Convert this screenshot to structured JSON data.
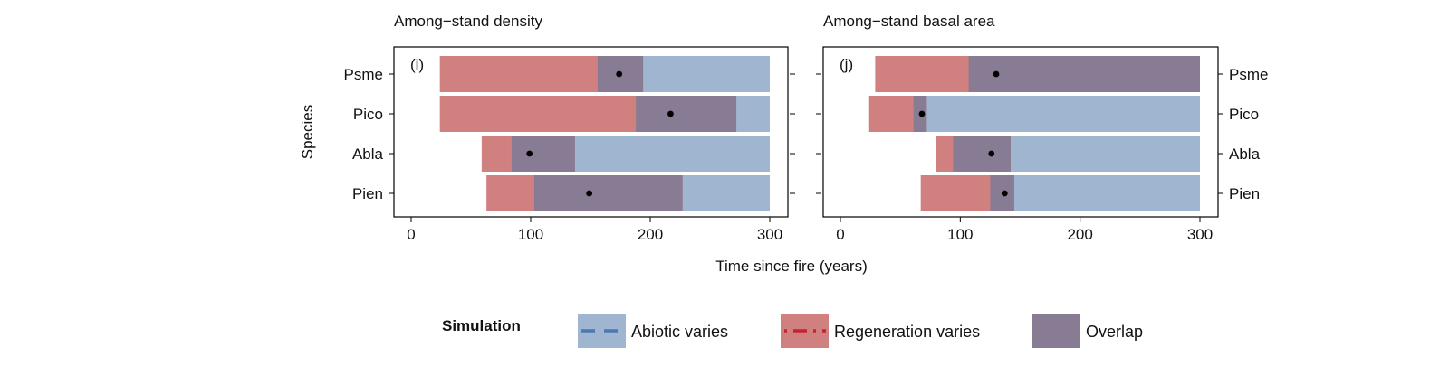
{
  "colors": {
    "abiotic": "#a0b5cf",
    "regeneration": "#d18080",
    "overlap": "#877c93",
    "point": "#000000",
    "abiotic_line": "#4a78b5",
    "regen_line": "#c0262c"
  },
  "x_axis_label": "Time since fire (years)",
  "y_axis_label": "Species",
  "legend": {
    "title": "Simulation",
    "items": [
      {
        "key": "abiotic",
        "label": "Abiotic varies",
        "line_style": "dashed"
      },
      {
        "key": "regeneration",
        "label": "Regeneration varies",
        "line_style": "dash-dot"
      },
      {
        "key": "overlap",
        "label": "Overlap",
        "line_style": "none"
      }
    ]
  },
  "chart_data": [
    {
      "type": "bar",
      "title": "Among−stand density",
      "panel_tag": "(i)",
      "xlim": [
        0,
        300
      ],
      "xticks": [
        0,
        100,
        200,
        300
      ],
      "species": [
        "Psme",
        "Pico",
        "Abla",
        "Pien"
      ],
      "series": [
        {
          "name": "Abiotic varies",
          "ranges": [
            [
              156,
              300
            ],
            [
              188,
              300
            ],
            [
              84,
              300
            ],
            [
              103,
              300
            ]
          ]
        },
        {
          "name": "Regeneration varies",
          "ranges": [
            [
              24,
              194
            ],
            [
              24,
              272
            ],
            [
              59,
              137
            ],
            [
              63,
              227
            ]
          ]
        },
        {
          "name": "Overlap",
          "ranges": [
            [
              156,
              194
            ],
            [
              188,
              272
            ],
            [
              84,
              137
            ],
            [
              103,
              227
            ]
          ]
        }
      ],
      "points": [
        174,
        217,
        99,
        149
      ]
    },
    {
      "type": "bar",
      "title": "Among−stand basal area",
      "panel_tag": "(j)",
      "xlim": [
        0,
        300
      ],
      "xticks": [
        0,
        100,
        200,
        300
      ],
      "species": [
        "Psme",
        "Pico",
        "Abla",
        "Pien"
      ],
      "series": [
        {
          "name": "Abiotic varies",
          "ranges": [
            [
              107,
              300
            ],
            [
              61,
              300
            ],
            [
              94,
              300
            ],
            [
              125,
              300
            ]
          ]
        },
        {
          "name": "Regeneration varies",
          "ranges": [
            [
              29,
              300
            ],
            [
              24,
              72
            ],
            [
              80,
              142
            ],
            [
              67,
              145
            ]
          ]
        },
        {
          "name": "Overlap",
          "ranges": [
            [
              107,
              300
            ],
            [
              61,
              72
            ],
            [
              94,
              142
            ],
            [
              125,
              145
            ]
          ]
        }
      ],
      "points": [
        130,
        68,
        126,
        137
      ]
    }
  ]
}
